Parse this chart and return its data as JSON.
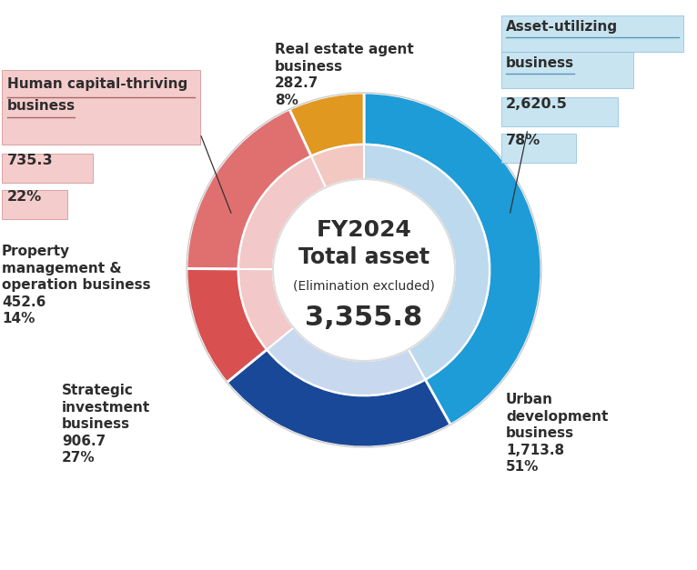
{
  "title_line1": "FY2024",
  "title_line2": "Total asset",
  "title_line3": "(Elimination excluded)",
  "title_line4": "3,355.8",
  "values": [
    1713.8,
    282.7,
    735.3,
    452.6,
    906.7
  ],
  "outer_ring_colors": [
    "#1E9CD7",
    "#E09820",
    "#E07070",
    "#D85050",
    "#1A4898"
  ],
  "inner_ring_colors": [
    "#BDD9EE",
    "#F2C8C0",
    "#F2C8C8",
    "#F2C8C8",
    "#C8D8EE"
  ],
  "asset_utilizing_value": "2,620.5",
  "asset_utilizing_pct": "78%",
  "human_value": "735.3",
  "human_pct": "22%",
  "bg_color": "#FFFFFF",
  "text_color_dark": "#2D2D2D",
  "pink_box_color": "#F5CCCC",
  "blue_box_color": "#C8E4F0",
  "pink_line_color": "#CC8888",
  "blue_line_color": "#88BBDD"
}
